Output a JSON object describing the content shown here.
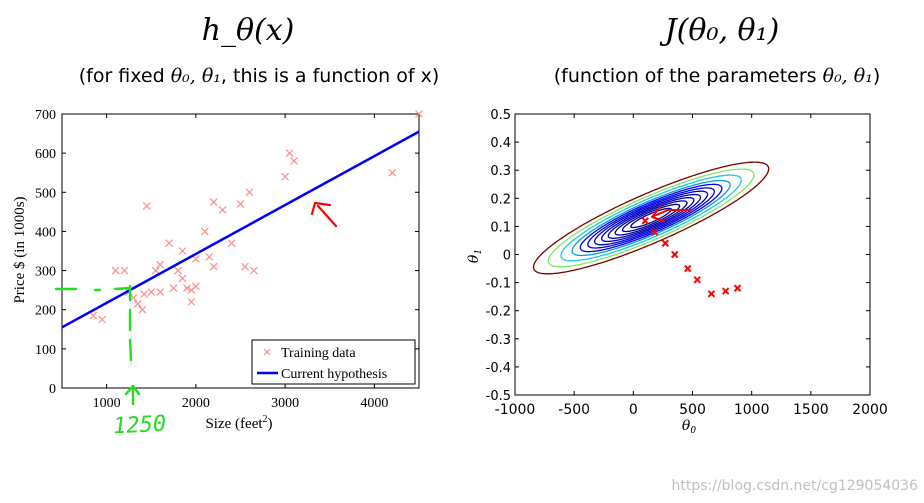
{
  "left": {
    "title": "h_θ(x)",
    "subtitle_prefix": "(for fixed ",
    "subtitle_params": "θ₀, θ₁",
    "subtitle_suffix": ", this is a function of x)",
    "annotation_value": "1250"
  },
  "right": {
    "title": "J(θ₀, θ₁)",
    "subtitle_prefix": "(function of the parameters ",
    "subtitle_params": "θ₀, θ₁",
    "subtitle_suffix": ")"
  },
  "watermark": "https://blog.csdn.net/cg129054036",
  "chart_data": [
    {
      "type": "scatter",
      "title": "h_θ(x)",
      "xlabel": "Size (feet²)",
      "ylabel": "Price $ (in 1000s)",
      "xlim": [
        500,
        4500
      ],
      "ylim": [
        0,
        700
      ],
      "xticks": [
        1000,
        2000,
        3000,
        4000
      ],
      "yticks": [
        0,
        100,
        200,
        300,
        400,
        500,
        600,
        700
      ],
      "legend": [
        "Training data",
        "Current hypothesis"
      ],
      "legend_position": "bottom-right",
      "series": [
        {
          "name": "Training data",
          "marker": "x",
          "color": "#ff8c8c",
          "points": [
            [
              850,
              185
            ],
            [
              950,
              175
            ],
            [
              1100,
              300
            ],
            [
              1200,
              300
            ],
            [
              1250,
              245
            ],
            [
              1300,
              230
            ],
            [
              1350,
              215
            ],
            [
              1400,
              200
            ],
            [
              1420,
              240
            ],
            [
              1450,
              465
            ],
            [
              1500,
              245
            ],
            [
              1550,
              300
            ],
            [
              1600,
              315
            ],
            [
              1600,
              245
            ],
            [
              1700,
              370
            ],
            [
              1750,
              255
            ],
            [
              1800,
              300
            ],
            [
              1850,
              350
            ],
            [
              1850,
              280
            ],
            [
              1900,
              255
            ],
            [
              1950,
              250
            ],
            [
              1950,
              220
            ],
            [
              2000,
              330
            ],
            [
              2000,
              260
            ],
            [
              2100,
              400
            ],
            [
              2150,
              335
            ],
            [
              2200,
              310
            ],
            [
              2200,
              475
            ],
            [
              2300,
              455
            ],
            [
              2400,
              370
            ],
            [
              2500,
              470
            ],
            [
              2550,
              310
            ],
            [
              2600,
              500
            ],
            [
              2650,
              300
            ],
            [
              3000,
              540
            ],
            [
              3050,
              600
            ],
            [
              3100,
              580
            ],
            [
              4200,
              550
            ],
            [
              4500,
              700
            ]
          ]
        },
        {
          "name": "Current hypothesis",
          "type": "line",
          "color": "#0000ff",
          "x": [
            500,
            4500
          ],
          "y": [
            155,
            655
          ]
        }
      ]
    },
    {
      "type": "contour",
      "title": "J(θ₀, θ₁)",
      "xlabel": "θ₀",
      "ylabel": "θ₁",
      "xlim": [
        -1000,
        2000
      ],
      "ylim": [
        -0.5,
        0.5
      ],
      "xticks": [
        -1000,
        -500,
        0,
        500,
        1000,
        1500,
        2000
      ],
      "yticks": [
        -0.5,
        -0.4,
        -0.3,
        -0.2,
        -0.1,
        0,
        0.1,
        0.2,
        0.3,
        0.4,
        0.5
      ],
      "minimum": [
        150,
        0.13
      ],
      "contour_levels": [
        0.3,
        0.6,
        0.95,
        1.35,
        1.8,
        2.35,
        2.95,
        3.7,
        4.6,
        6.0,
        7.8,
        10.2
      ],
      "contour_colors": [
        "#000090",
        "#000098",
        "#0000a8",
        "#0000b8",
        "#0000c8",
        "#0000d8",
        "#0000e8",
        "#0000ff",
        "#00a0e0",
        "#20c8e8",
        "#80e860",
        "#7a0000"
      ],
      "markers": {
        "marker": "x",
        "color": "#ff0000",
        "points": [
          [
            100,
            0.12
          ],
          [
            180,
            0.08
          ],
          [
            270,
            0.04
          ],
          [
            350,
            0.0
          ],
          [
            460,
            -0.05
          ],
          [
            540,
            -0.09
          ],
          [
            660,
            -0.14
          ],
          [
            780,
            -0.13
          ],
          [
            880,
            -0.12
          ]
        ]
      }
    }
  ]
}
